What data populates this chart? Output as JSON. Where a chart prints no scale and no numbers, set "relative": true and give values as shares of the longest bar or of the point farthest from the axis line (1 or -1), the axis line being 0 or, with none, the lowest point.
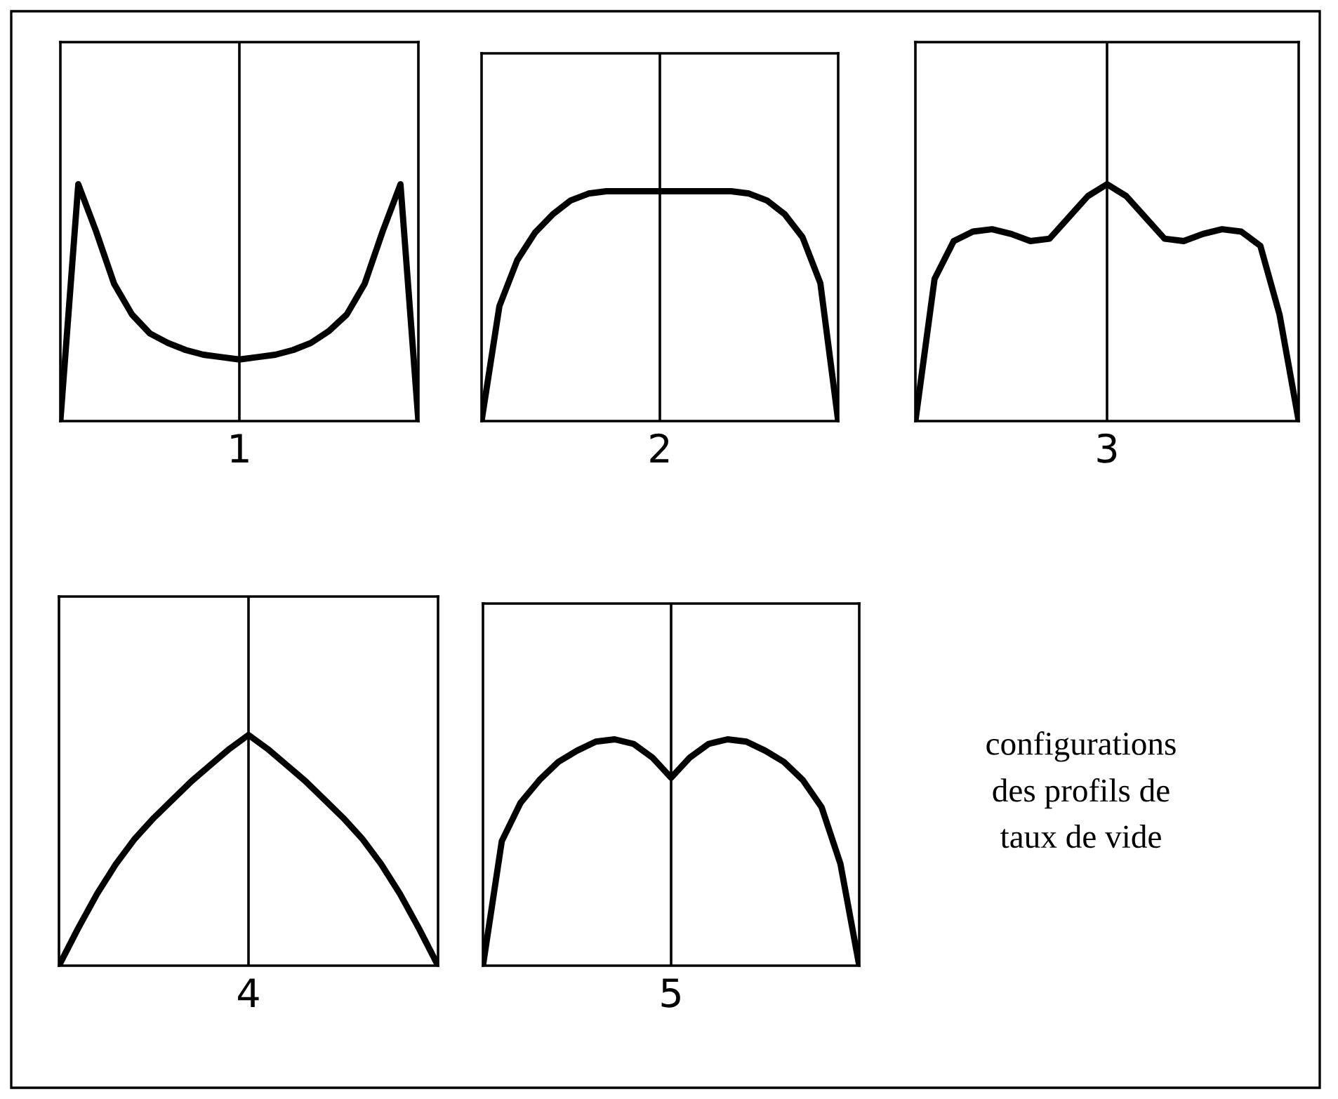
{
  "chart_data": [
    {
      "type": "line",
      "relative": true,
      "xlabel": "1",
      "categories": [
        null,
        null,
        null,
        null,
        null,
        null,
        null,
        null,
        null,
        null,
        null,
        null,
        null,
        null,
        null,
        null,
        null,
        null,
        null,
        null,
        null
      ],
      "color": "#000000",
      "values": [
        0,
        1.0,
        0.8,
        0.58,
        0.45,
        0.37,
        0.33,
        0.3,
        0.28,
        0.27,
        0.26,
        0.27,
        0.28,
        0.3,
        0.33,
        0.38,
        0.45,
        0.58,
        0.8,
        1.0,
        0
      ]
    },
    {
      "type": "line",
      "relative": true,
      "xlabel": "2",
      "categories": [
        null,
        null,
        null,
        null,
        null,
        null,
        null,
        null,
        null,
        null,
        null,
        null,
        null,
        null,
        null,
        null,
        null,
        null,
        null,
        null,
        null
      ],
      "color": "#000000",
      "values": [
        0,
        0.5,
        0.7,
        0.82,
        0.9,
        0.96,
        0.99,
        1,
        1,
        1,
        1,
        1,
        1,
        1,
        1,
        0.99,
        0.96,
        0.9,
        0.8,
        0.6,
        0
      ]
    },
    {
      "type": "line",
      "relative": true,
      "xlabel": "3",
      "categories": [
        null,
        null,
        null,
        null,
        null,
        null,
        null,
        null,
        null,
        null,
        null,
        null,
        null,
        null,
        null,
        null,
        null,
        null,
        null,
        null,
        null
      ],
      "color": "#000000",
      "values": [
        0,
        0.6,
        0.76,
        0.8,
        0.81,
        0.79,
        0.76,
        0.77,
        0.86,
        0.95,
        1,
        0.95,
        0.86,
        0.77,
        0.76,
        0.79,
        0.81,
        0.8,
        0.74,
        0.45,
        0
      ]
    },
    {
      "type": "line",
      "relative": true,
      "xlabel": "4",
      "categories": [
        null,
        null,
        null,
        null,
        null,
        null,
        null,
        null,
        null,
        null,
        null,
        null,
        null,
        null,
        null,
        null,
        null,
        null,
        null,
        null,
        null
      ],
      "color": "#000000",
      "values": [
        0,
        0.16,
        0.31,
        0.44,
        0.55,
        0.64,
        0.72,
        0.8,
        0.87,
        0.94,
        1,
        0.94,
        0.87,
        0.8,
        0.72,
        0.64,
        0.55,
        0.44,
        0.31,
        0.16,
        0
      ]
    },
    {
      "type": "line",
      "relative": true,
      "xlabel": "5",
      "categories": [
        null,
        null,
        null,
        null,
        null,
        null,
        null,
        null,
        null,
        null,
        null,
        null,
        null,
        null,
        null,
        null,
        null,
        null,
        null,
        null,
        null
      ],
      "color": "#000000",
      "values": [
        0,
        0.55,
        0.72,
        0.82,
        0.9,
        0.95,
        0.99,
        1,
        0.98,
        0.92,
        0.83,
        0.92,
        0.98,
        1,
        0.99,
        0.95,
        0.9,
        0.82,
        0.7,
        0.45,
        0
      ]
    },
    {
      "type": "other",
      "annotations": [
        "configurations\ndes profils de\ntaux de vide"
      ]
    }
  ]
}
